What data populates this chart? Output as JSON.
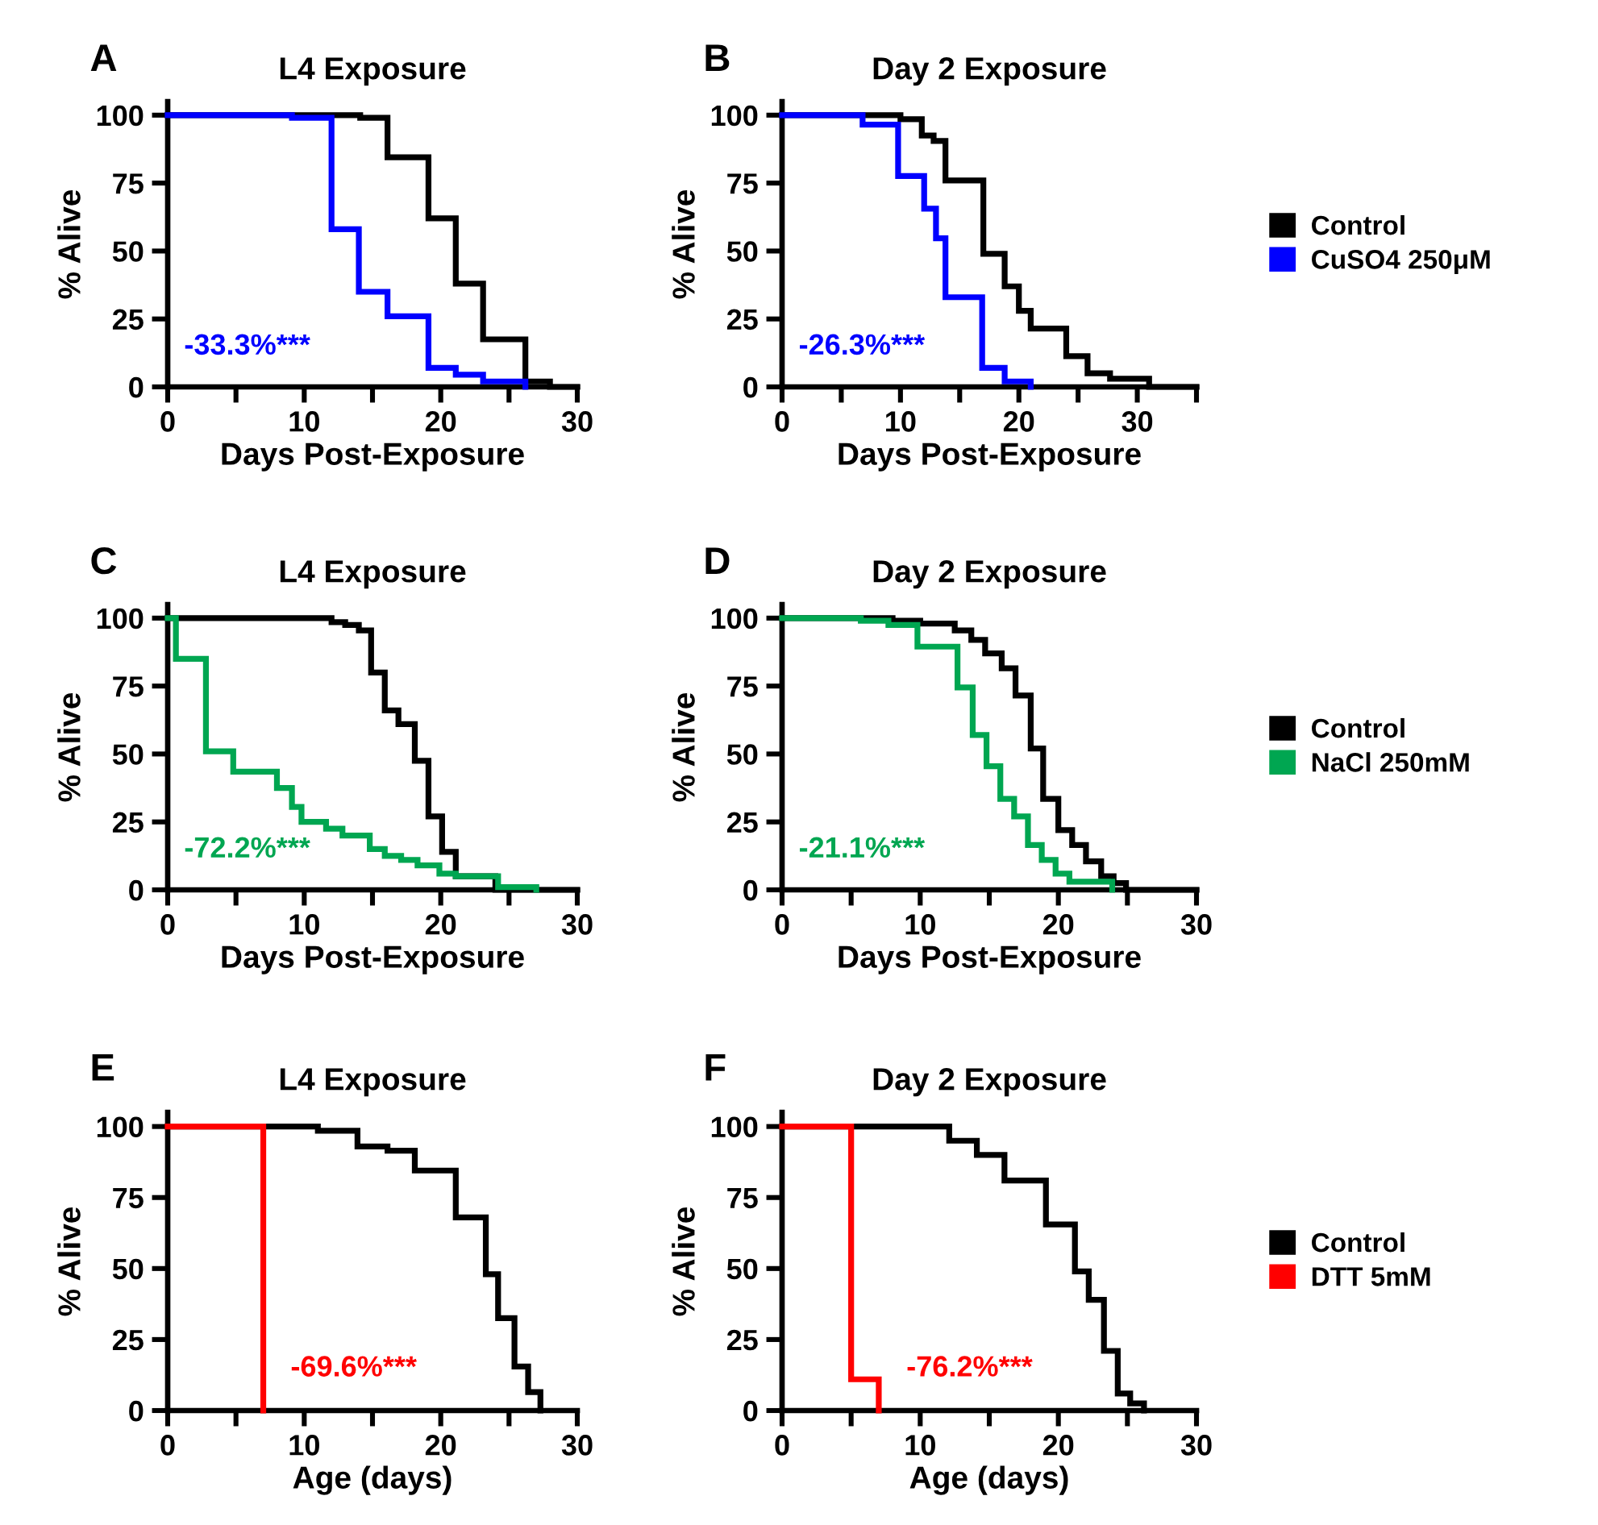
{
  "chart_data": [
    {
      "type": "step",
      "title": "L4 Exposure",
      "xlabel": "Days Post-Exposure",
      "ylabel": "% Alive",
      "xlim": [
        0,
        30
      ],
      "xticks": [
        0,
        {
          "value": 5,
          "label": null
        },
        10,
        {
          "value": 15,
          "label": null
        },
        20,
        {
          "value": 25,
          "label": null
        },
        30
      ],
      "ylim": [
        0,
        105
      ],
      "yticks": [
        0,
        25,
        50,
        75,
        100
      ],
      "annotations": [
        "A",
        "-33.3%***"
      ],
      "series": [
        {
          "color": "#000000",
          "x": [
            0,
            14.1,
            16.1,
            19.1,
            21.1,
            23.1,
            26.2,
            28,
            30
          ],
          "values": [
            100,
            99,
            84.5,
            62,
            38,
            17.5,
            2,
            0,
            0
          ]
        },
        {
          "color": "#0000ff",
          "x": [
            0,
            9.1,
            12,
            14,
            16.1,
            19.1,
            21.1,
            23.1,
            26.2
          ],
          "values": [
            100,
            99,
            58,
            35,
            26,
            7,
            4.5,
            2,
            0
          ]
        }
      ]
    },
    {
      "type": "step",
      "title": "Day 2 Exposure",
      "xlabel": "Days Post-Exposure",
      "ylabel": "% Alive",
      "xlim": [
        0,
        35
      ],
      "xticks": [
        0,
        {
          "value": 5,
          "label": null
        },
        10,
        {
          "value": 15,
          "label": null
        },
        20,
        {
          "value": 25,
          "label": null
        },
        30,
        {
          "value": 35,
          "label": null
        }
      ],
      "ylim": [
        0,
        105
      ],
      "yticks": [
        0,
        25,
        50,
        75,
        100
      ],
      "annotations": [
        "B",
        "-26.3%***"
      ],
      "legend": "right",
      "series": [
        {
          "name": "Control",
          "color": "#000000",
          "x": [
            0,
            10,
            11.8,
            12.8,
            13.8,
            17,
            18.8,
            20,
            21,
            24,
            25.8,
            27.7,
            31,
            35
          ],
          "values": [
            100,
            98.5,
            92.5,
            90.5,
            76,
            49,
            37,
            28,
            21.5,
            11.3,
            5,
            3,
            0,
            0
          ]
        },
        {
          "name": "CuSO4 250μM",
          "color": "#0000ff",
          "x": [
            0,
            6.8,
            9.8,
            12,
            13,
            13.8,
            16.9,
            18.8,
            21
          ],
          "values": [
            100,
            96.5,
            77.6,
            65.6,
            54.7,
            33,
            7,
            2,
            0
          ]
        }
      ]
    },
    {
      "type": "step",
      "title": "L4 Exposure",
      "xlabel": "Days Post-Exposure",
      "ylabel": "% Alive",
      "xlim": [
        0,
        30
      ],
      "xticks": [
        0,
        {
          "value": 5,
          "label": null
        },
        10,
        {
          "value": 15,
          "label": null
        },
        20,
        {
          "value": 25,
          "label": null
        },
        30
      ],
      "ylim": [
        0,
        105
      ],
      "yticks": [
        0,
        25,
        50,
        75,
        100
      ],
      "annotations": [
        "C",
        "-72.2%***"
      ],
      "series": [
        {
          "color": "#000000",
          "x": [
            0,
            12,
            13,
            14,
            14.9,
            15.9,
            16.9,
            18.1,
            19.1,
            20.1,
            21.1,
            24,
            30
          ],
          "values": [
            100,
            98.5,
            97.5,
            95.5,
            80,
            66,
            61,
            47.5,
            27,
            14,
            5,
            0,
            0
          ]
        },
        {
          "color": "#00a651",
          "x": [
            0,
            0.6,
            2.8,
            4.8,
            8,
            9.1,
            9.8,
            11.6,
            12.8,
            14.8,
            15.9,
            17.1,
            18.3,
            19.9,
            21.1,
            24.2,
            27
          ],
          "values": [
            100,
            85,
            51,
            43.5,
            37.5,
            30.5,
            25,
            22.5,
            20,
            15,
            12.5,
            11,
            9,
            6,
            5,
            1,
            0
          ]
        }
      ]
    },
    {
      "type": "step",
      "title": "Day 2 Exposure",
      "xlabel": "Days Post-Exposure",
      "ylabel": "% Alive",
      "xlim": [
        0,
        30
      ],
      "xticks": [
        0,
        {
          "value": 5,
          "label": null
        },
        10,
        {
          "value": 15,
          "label": null
        },
        20,
        {
          "value": 25,
          "label": null
        },
        30
      ],
      "ylim": [
        0,
        105
      ],
      "yticks": [
        0,
        25,
        50,
        75,
        100
      ],
      "annotations": [
        "D",
        "-21.1%***"
      ],
      "legend": "right",
      "series": [
        {
          "name": "Control",
          "color": "#000000",
          "x": [
            0,
            8,
            10,
            12.5,
            13.7,
            14.7,
            15.9,
            16.9,
            18,
            18.9,
            20,
            21,
            22,
            23.1,
            24,
            24.9,
            30
          ],
          "values": [
            100,
            99,
            98,
            95.5,
            92,
            87,
            81.5,
            71.5,
            52,
            33.5,
            22,
            16.5,
            10.5,
            5,
            2.5,
            0,
            0
          ]
        },
        {
          "name": "NaCl 250mM",
          "color": "#00a651",
          "x": [
            0,
            5.7,
            7.7,
            9.8,
            12.7,
            13.8,
            14.8,
            15.8,
            16.8,
            17.8,
            18.8,
            19.8,
            20.8,
            23.9
          ],
          "values": [
            100,
            99,
            97.5,
            89.5,
            74.5,
            57,
            45.5,
            33.5,
            27,
            16.5,
            11,
            6,
            3,
            0
          ]
        }
      ]
    },
    {
      "type": "step",
      "title": "L4 Exposure",
      "xlabel": "Age (days)",
      "ylabel": "% Alive",
      "xlim": [
        0,
        30
      ],
      "xticks": [
        0,
        {
          "value": 5,
          "label": null
        },
        10,
        {
          "value": 15,
          "label": null
        },
        20,
        {
          "value": 25,
          "label": null
        },
        30
      ],
      "ylim": [
        0,
        105
      ],
      "yticks": [
        0,
        25,
        50,
        75,
        100
      ],
      "annotations": [
        "E",
        "-69.6%***"
      ],
      "series": [
        {
          "color": "#000000",
          "x": [
            0,
            11,
            13.9,
            16.1,
            18.1,
            21.1,
            23.3,
            24.2,
            25.4,
            26.4,
            27.3
          ],
          "values": [
            100,
            98.5,
            93,
            91.5,
            84.5,
            68,
            48,
            32.5,
            15.5,
            6.5,
            0
          ]
        },
        {
          "color": "#ff0000",
          "x": [
            0,
            7
          ],
          "values": [
            100,
            0
          ]
        }
      ]
    },
    {
      "type": "step",
      "title": "Day 2 Exposure",
      "xlabel": "Age (days)",
      "ylabel": "% Alive",
      "xlim": [
        0,
        30
      ],
      "xticks": [
        0,
        {
          "value": 5,
          "label": null
        },
        10,
        {
          "value": 15,
          "label": null
        },
        20,
        {
          "value": 25,
          "label": null
        },
        30
      ],
      "ylim": [
        0,
        105
      ],
      "yticks": [
        0,
        25,
        50,
        75,
        100
      ],
      "annotations": [
        "F",
        "-76.2%***"
      ],
      "legend": "right",
      "series": [
        {
          "name": "Control",
          "color": "#000000",
          "x": [
            0,
            12.1,
            14.1,
            16.1,
            19.1,
            21.2,
            22.2,
            23.3,
            24.3,
            25.2,
            26.2
          ],
          "values": [
            100,
            95,
            90,
            81,
            65.5,
            49,
            39,
            21,
            6,
            2.5,
            0
          ]
        },
        {
          "name": "DTT 5mM",
          "color": "#ff0000",
          "x": [
            0,
            5,
            7
          ],
          "values": [
            100,
            11,
            0
          ]
        }
      ]
    }
  ]
}
